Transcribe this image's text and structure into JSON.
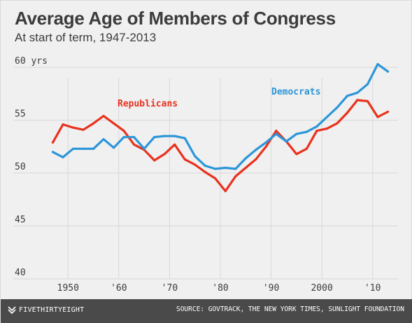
{
  "title": "Average Age of Members of Congress",
  "subtitle": "At start of term, 1947-2013",
  "footer": {
    "logo_text": "FIVETHIRTYEIGHT",
    "source": "SOURCE: GOVTRACK, THE NEW YORK TIMES, SUNLIGHT FOUNDATION"
  },
  "colors": {
    "republicans": "#e8321e",
    "democrats": "#2c96d8",
    "background": "#f0f0f0",
    "grid": "#d8d8d8",
    "footer": "#4a4a4a"
  },
  "chart_data": {
    "type": "line",
    "title": "Average Age of Members of Congress",
    "subtitle": "At start of term, 1947-2013",
    "xlabel": "",
    "ylabel": "",
    "xlim": [
      1945,
      2015
    ],
    "ylim": [
      40,
      61
    ],
    "grid": true,
    "x_ticks": [
      {
        "value": 1950,
        "label": "1950"
      },
      {
        "value": 1960,
        "label": "'60"
      },
      {
        "value": 1970,
        "label": "'70"
      },
      {
        "value": 1980,
        "label": "'80"
      },
      {
        "value": 1990,
        "label": "'90"
      },
      {
        "value": 2000,
        "label": "2000"
      },
      {
        "value": 2010,
        "label": "'10"
      }
    ],
    "y_ticks": [
      {
        "value": 40,
        "label": "40"
      },
      {
        "value": 45,
        "label": "45"
      },
      {
        "value": 50,
        "label": "50"
      },
      {
        "value": 55,
        "label": "55"
      },
      {
        "value": 60,
        "label": "60 yrs"
      }
    ],
    "x": [
      1947,
      1949,
      1951,
      1953,
      1955,
      1957,
      1959,
      1961,
      1963,
      1965,
      1967,
      1969,
      1971,
      1973,
      1975,
      1977,
      1979,
      1981,
      1983,
      1985,
      1987,
      1989,
      1991,
      1993,
      1995,
      1997,
      1999,
      2001,
      2003,
      2005,
      2007,
      2009,
      2011,
      2013
    ],
    "series": [
      {
        "name": "Republicans",
        "color": "#e8321e",
        "values": [
          52.9,
          54.6,
          54.3,
          54.1,
          54.7,
          55.4,
          54.7,
          54.0,
          52.7,
          52.2,
          51.2,
          51.8,
          52.7,
          51.3,
          50.8,
          50.1,
          49.5,
          48.3,
          49.7,
          50.5,
          51.3,
          52.5,
          54.0,
          53.0,
          51.8,
          52.3,
          54.0,
          54.2,
          54.7,
          55.7,
          56.9,
          56.8,
          55.3,
          55.8
        ]
      },
      {
        "name": "Democrats",
        "color": "#2c96d8",
        "values": [
          52.0,
          51.5,
          52.3,
          52.3,
          52.3,
          53.2,
          52.4,
          53.4,
          53.4,
          52.3,
          53.4,
          53.5,
          53.5,
          53.3,
          51.6,
          50.7,
          50.4,
          50.5,
          50.4,
          51.4,
          52.2,
          52.9,
          53.7,
          53.0,
          53.7,
          53.9,
          54.4,
          55.3,
          56.2,
          57.3,
          57.6,
          58.4,
          60.3,
          59.6
        ]
      }
    ]
  }
}
